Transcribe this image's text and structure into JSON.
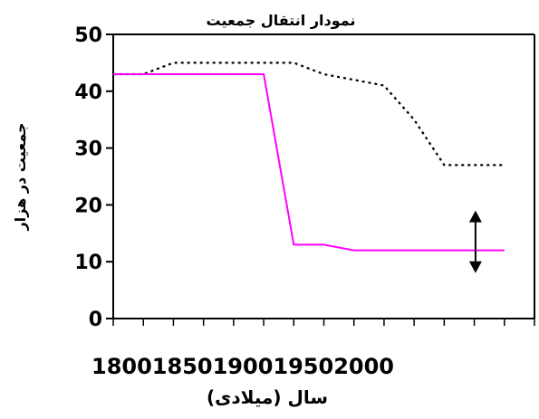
{
  "chart_data": {
    "type": "line",
    "title": "نمودار انتقال جمعیت",
    "xlabel": "سال (میلادی)",
    "ylabel": "جمعیت در هزار",
    "ylim": [
      0,
      50
    ],
    "y_ticks": [
      "0",
      "10",
      "20",
      "30",
      "40",
      "50"
    ],
    "x_tick_label_text": "18001850190019502000",
    "x": [
      1800,
      1825,
      1850,
      1875,
      1900,
      1925,
      1950,
      1975,
      2000,
      2025,
      2050,
      2075,
      2100,
      2125
    ],
    "series": [
      {
        "style": "dotted",
        "color": "#000000",
        "values": [
          43,
          43,
          45,
          45,
          45,
          45,
          45,
          43,
          42,
          41,
          35,
          27,
          27,
          27
        ]
      },
      {
        "style": "solid",
        "color": "#ff00ff",
        "values": [
          43,
          43,
          43,
          43,
          43,
          43,
          13,
          13,
          12,
          12,
          12,
          12,
          12,
          12
        ]
      }
    ],
    "annotation": {
      "type": "double-arrow",
      "x": 2101,
      "y_from": 8,
      "y_to": 19
    },
    "grid": false
  }
}
